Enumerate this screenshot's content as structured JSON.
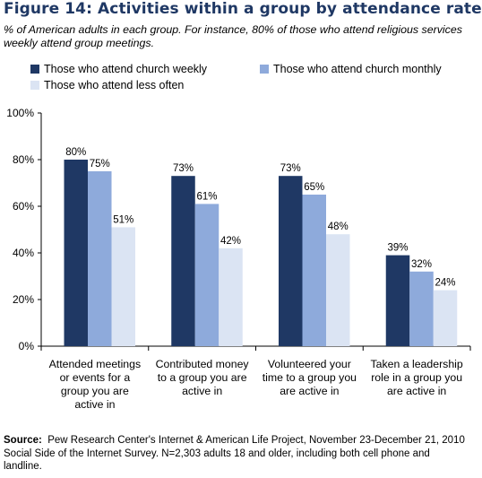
{
  "figure": {
    "title": "Figure 14: Activities within a group by attendance rate",
    "subtitle": "% of American adults in each group. For instance, 80% of those who attend religious services weekly attend group meetings.",
    "source_label": "Source:",
    "source_text": "Pew Research Center's Internet & American Life Project, November 23-December 21, 2010 Social Side of the Internet Survey. N=2,303 adults 18 and older, including both cell phone and landline."
  },
  "chart_data": {
    "type": "bar",
    "categories": [
      [
        "Attended meetings",
        "or events for a",
        "group you are",
        "active in"
      ],
      [
        "Contributed money",
        "to a group you are",
        "active in"
      ],
      [
        "Volunteered your",
        "time to a group you",
        "are active in"
      ],
      [
        "Taken a leadership",
        "role in a group you",
        "are active in"
      ]
    ],
    "series": [
      {
        "name": "Those who attend church weekly",
        "values": [
          80,
          73,
          73,
          39
        ],
        "color": "#1f3864"
      },
      {
        "name": "Those who attend church monthly",
        "values": [
          75,
          61,
          65,
          32
        ],
        "color": "#8eaadb"
      },
      {
        "name": "Those who attend less often",
        "values": [
          51,
          42,
          48,
          24
        ],
        "color": "#dbe4f3"
      }
    ],
    "value_labels": [
      [
        "80%",
        "73%",
        "73%",
        "39%"
      ],
      [
        "75%",
        "61%",
        "65%",
        "32%"
      ],
      [
        "51%",
        "42%",
        "48%",
        "24%"
      ]
    ],
    "ylim": [
      0,
      100
    ],
    "yticks": [
      0,
      20,
      40,
      60,
      80,
      100
    ],
    "ytick_labels": [
      "0%",
      "20%",
      "40%",
      "60%",
      "80%",
      "100%"
    ],
    "grid": false,
    "legend_position": "top"
  }
}
